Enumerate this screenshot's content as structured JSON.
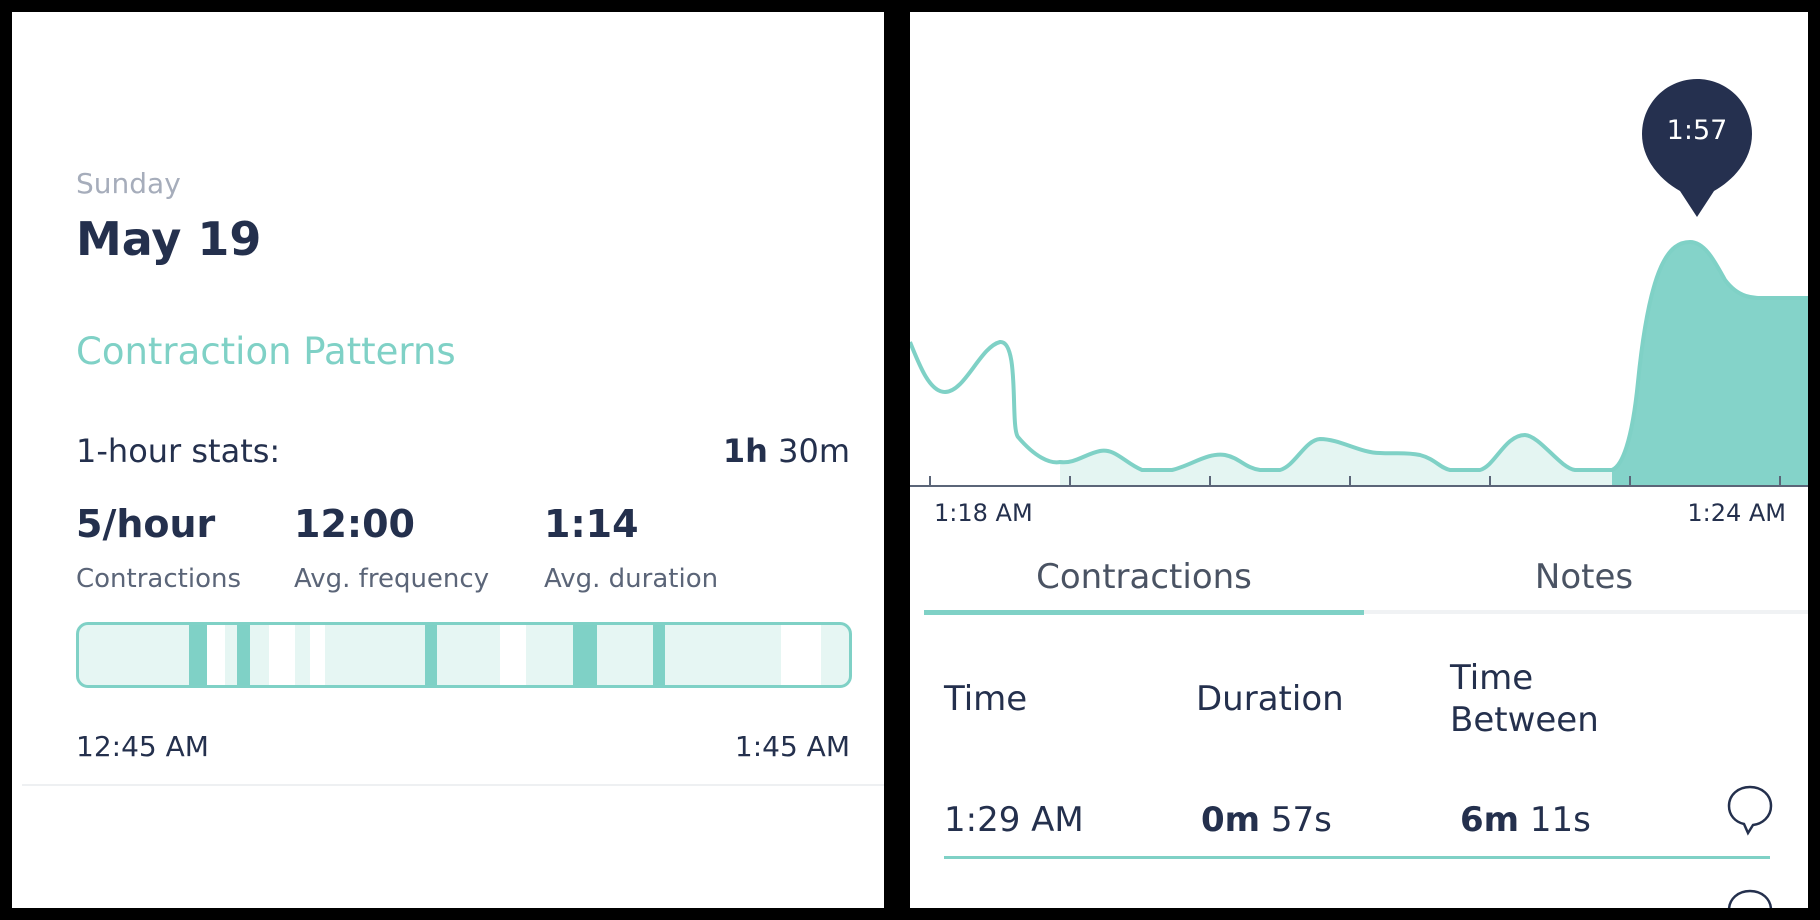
{
  "left_panel": {
    "day": "Sunday",
    "date": "May 19",
    "section_title": "Contraction Patterns",
    "stats_label": "1-hour stats:",
    "stats_range": {
      "hours": "1h",
      "minutes": "30m"
    },
    "stats": [
      {
        "value": "5/hour",
        "caption": "Contractions"
      },
      {
        "value": "12:00",
        "caption": "Avg. frequency"
      },
      {
        "value": "1:14",
        "caption": "Avg. duration"
      }
    ],
    "timeline": {
      "start_label": "12:45 AM",
      "end_label": "1:45 AM",
      "colors": {
        "background": "#e6f6f3",
        "contraction": "#7fd1c6",
        "gap": "#ffffff"
      }
    }
  },
  "right_panel": {
    "chart_data": {
      "type": "area",
      "x_start_label": "1:18 AM",
      "x_end_label": "1:24 AM",
      "highlight_value": "1:57",
      "colors": {
        "line": "#7fd1c6",
        "fill_light": "#e4f5f2",
        "fill_active": "#84d3c9",
        "pin": "#25304f"
      }
    },
    "tabs": [
      {
        "label": "Contractions",
        "active": true
      },
      {
        "label": "Notes",
        "active": false
      }
    ],
    "table": {
      "headers": [
        "Time",
        "Duration",
        "Time Between"
      ],
      "rows": [
        {
          "time": "1:29 AM",
          "duration_min": "0m",
          "duration_sec": "57s",
          "between_min": "6m",
          "between_sec": "11s"
        }
      ]
    },
    "icons": {
      "note": "speech-bubble-icon"
    }
  }
}
